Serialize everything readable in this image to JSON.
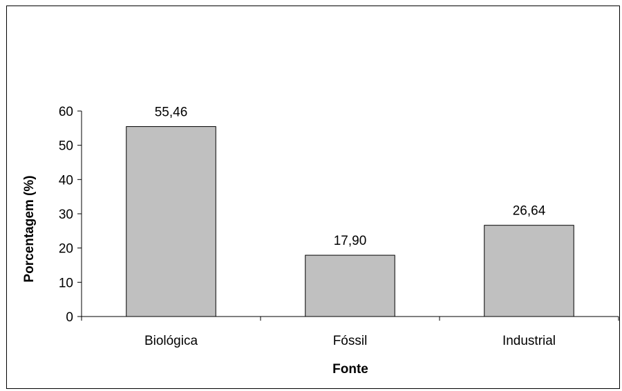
{
  "chart_data": {
    "type": "bar",
    "title": "",
    "xlabel": "Fonte",
    "ylabel": "Porcentagem (%)",
    "categories": [
      "Biológica",
      "Fóssil",
      "Industrial"
    ],
    "values": [
      55.46,
      17.9,
      26.64
    ],
    "data_labels": [
      "55,46",
      "17,90",
      "26,64"
    ],
    "ylim": [
      0,
      60
    ],
    "yticks": [
      0,
      10,
      20,
      30,
      40,
      50,
      60
    ],
    "ytick_labels": [
      "0",
      "10",
      "20",
      "30",
      "40",
      "50",
      "60"
    ],
    "grid": false,
    "legend": "none",
    "bar_color": "#c0c0c0",
    "bar_edge_color": "#000000"
  }
}
